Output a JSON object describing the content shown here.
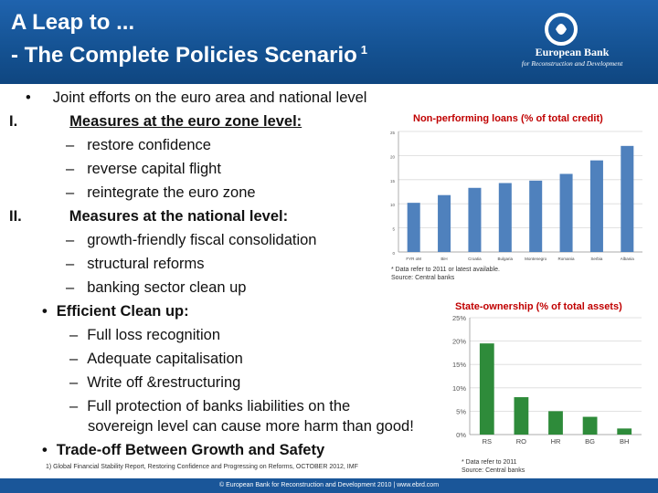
{
  "header": {
    "title_line1": "A Leap to ...",
    "title_line2": "- The Complete Policies Scenario",
    "title_sup": "1",
    "logo_name": "European Bank",
    "logo_sub": "for Reconstruction and Development"
  },
  "bullets": [
    {
      "marker": "•",
      "text": "Joint efforts on the euro area and national level"
    },
    {
      "marker": "I.",
      "text": "Measures at the euro zone level:"
    },
    {
      "marker": "–",
      "text": "restore confidence"
    },
    {
      "marker": "–",
      "text": "reverse capital flight"
    },
    {
      "marker": "–",
      "text": "reintegrate the euro zone"
    },
    {
      "marker": "II.",
      "text": "Measures at the national level:"
    },
    {
      "marker": "–",
      "text": "growth-friendly fiscal consolidation"
    },
    {
      "marker": "–",
      "text": "structural reforms"
    },
    {
      "marker": "–",
      "text": "banking sector clean up"
    },
    {
      "marker": "•",
      "text": "Efficient Clean up:"
    },
    {
      "marker": "–",
      "text": "Full loss recognition"
    },
    {
      "marker": "–",
      "text": "Adequate capitalisation"
    },
    {
      "marker": "–",
      "text": "Write off &restructuring"
    },
    {
      "marker": "–",
      "text": "Full protection of banks liabilities on the"
    },
    {
      "marker": "",
      "text": "sovereign level can cause more harm than good!"
    },
    {
      "marker": "•",
      "text": "Trade-off Between Growth and Safety"
    }
  ],
  "chart_data": [
    {
      "type": "bar",
      "title": "Non-performing loans (% of total credit)",
      "categories": [
        "FYR oM",
        "BiH",
        "Croatia",
        "Bulgaria",
        "Montenegro",
        "Romania",
        "Serbia",
        "Albania"
      ],
      "values": [
        10.2,
        11.8,
        13.3,
        14.3,
        14.8,
        16.2,
        19.0,
        22.0
      ],
      "yticks": [
        "0",
        "5",
        "10",
        "15",
        "20",
        "25"
      ],
      "ylim": [
        0,
        25
      ],
      "xlabel": "",
      "ylabel": "",
      "note": "* Data refer to 2011 or latest available.",
      "source": "Source: Central banks",
      "color": "#4f81bd"
    },
    {
      "type": "bar",
      "title": "State-ownership (% of total assets)",
      "categories": [
        "RS",
        "RO",
        "HR",
        "BG",
        "BH"
      ],
      "values": [
        19.5,
        8.0,
        5.0,
        3.8,
        1.3
      ],
      "yticks": [
        "0%",
        "5%",
        "10%",
        "15%",
        "20%",
        "25%"
      ],
      "ylim": [
        0,
        25
      ],
      "xlabel": "",
      "ylabel": "",
      "note": "* Data refer to 2011",
      "source": "Source: Central banks",
      "color": "#2e8b3a"
    }
  ],
  "footnote": "1) Global Financial Stability Report,  Restoring Confidence and Progressing on Reforms, OCTOBER 2012, IMF",
  "footer": "© European Bank for Reconstruction and Development 2010 | www.ebrd.com"
}
